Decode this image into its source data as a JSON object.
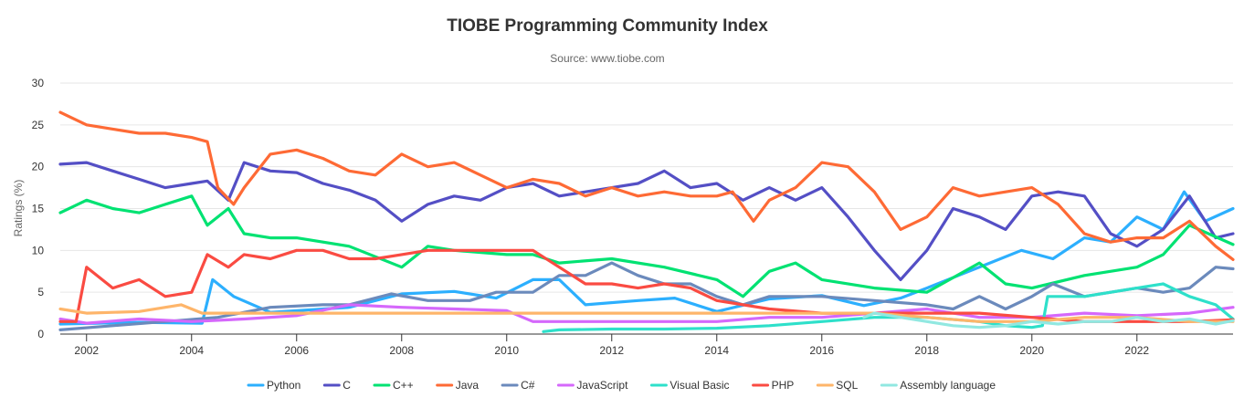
{
  "chart_data": {
    "type": "line",
    "title": "TIOBE Programming Community Index",
    "subtitle": "Source: www.tiobe.com",
    "ylabel": "Ratings (%)",
    "xlabel": "",
    "xlim": [
      2001.5,
      2023.83
    ],
    "ylim": [
      0,
      30
    ],
    "yticks": [
      0,
      5,
      10,
      15,
      20,
      25,
      30
    ],
    "xticks": [
      2002,
      2004,
      2006,
      2008,
      2010,
      2012,
      2014,
      2016,
      2018,
      2020,
      2022
    ],
    "grid": "horizontal",
    "legend": "bottom",
    "series": [
      {
        "name": "Python",
        "color": "#2caffe",
        "x": [
          2001.5,
          2003,
          2004.2,
          2004.4,
          2004.8,
          2005.5,
          2007,
          2008,
          2009,
          2009.8,
          2010.5,
          2011,
          2011.5,
          2012.5,
          2013.2,
          2014,
          2015,
          2016,
          2016.8,
          2017.5,
          2018,
          2018.6,
          2019.2,
          2019.8,
          2020.4,
          2021,
          2021.5,
          2022,
          2022.5,
          2022.9,
          2023.3,
          2023.83
        ],
        "values": [
          1.2,
          1.4,
          1.3,
          6.5,
          4.5,
          2.6,
          3.2,
          4.8,
          5.1,
          4.3,
          6.5,
          6.5,
          3.5,
          4.0,
          4.3,
          2.7,
          4.2,
          4.6,
          3.4,
          4.3,
          5.5,
          7.0,
          8.5,
          10.0,
          9.0,
          11.5,
          11.0,
          14.0,
          12.5,
          17.0,
          13.5,
          15.0
        ]
      },
      {
        "name": "C",
        "color": "#544fc5",
        "x": [
          2001.5,
          2002,
          2002.5,
          2003,
          2003.5,
          2004,
          2004.3,
          2004.7,
          2005,
          2005.5,
          2006,
          2006.5,
          2007,
          2007.5,
          2008,
          2008.5,
          2009,
          2009.5,
          2010,
          2010.5,
          2011,
          2011.5,
          2012,
          2012.5,
          2013,
          2013.5,
          2014,
          2014.5,
          2015,
          2015.5,
          2016,
          2016.5,
          2017,
          2017.5,
          2018,
          2018.5,
          2019,
          2019.5,
          2020,
          2020.5,
          2021,
          2021.5,
          2022,
          2022.5,
          2023,
          2023.5,
          2023.83
        ],
        "values": [
          20.3,
          20.5,
          19.5,
          18.5,
          17.5,
          18.0,
          18.3,
          16.0,
          20.5,
          19.5,
          19.3,
          18.0,
          17.2,
          16.0,
          13.5,
          15.5,
          16.5,
          16.0,
          17.5,
          18.0,
          16.5,
          17.0,
          17.5,
          18.0,
          19.5,
          17.5,
          18.0,
          16.0,
          17.5,
          16.0,
          17.5,
          14.0,
          10.0,
          6.5,
          10.0,
          15.0,
          14.0,
          12.5,
          16.5,
          17.0,
          16.5,
          12.0,
          10.5,
          12.5,
          16.5,
          11.5,
          12.0
        ]
      },
      {
        "name": "C++",
        "color": "#00e272",
        "x": [
          2001.5,
          2002,
          2002.5,
          2003,
          2003.5,
          2004,
          2004.3,
          2004.7,
          2005,
          2005.5,
          2006,
          2007,
          2008,
          2008.5,
          2009,
          2010,
          2010.5,
          2011,
          2012,
          2013,
          2014,
          2014.5,
          2015,
          2015.5,
          2016,
          2017,
          2018,
          2019,
          2019.5,
          2020,
          2021,
          2022,
          2022.5,
          2023,
          2023.83
        ],
        "values": [
          14.5,
          16.0,
          15.0,
          14.5,
          15.5,
          16.5,
          13.0,
          15.0,
          12.0,
          11.5,
          11.5,
          10.5,
          8.0,
          10.5,
          10.0,
          9.5,
          9.5,
          8.5,
          9.0,
          8.0,
          6.5,
          4.5,
          7.5,
          8.5,
          6.5,
          5.5,
          5.0,
          8.5,
          6.0,
          5.5,
          7.0,
          8.0,
          9.5,
          13.0,
          10.7
        ]
      },
      {
        "name": "Java",
        "color": "#fe6a35",
        "x": [
          2001.5,
          2002,
          2002.5,
          2003,
          2003.5,
          2004,
          2004.3,
          2004.5,
          2004.8,
          2005,
          2005.5,
          2006,
          2006.5,
          2007,
          2007.5,
          2008,
          2008.5,
          2009,
          2009.5,
          2010,
          2010.5,
          2011,
          2011.5,
          2012,
          2012.5,
          2013,
          2013.5,
          2014,
          2014.3,
          2014.7,
          2015,
          2015.5,
          2016,
          2016.5,
          2017,
          2017.5,
          2018,
          2018.5,
          2019,
          2019.5,
          2020,
          2020.5,
          2021,
          2021.5,
          2022,
          2022.5,
          2023,
          2023.5,
          2023.83
        ],
        "values": [
          26.5,
          25.0,
          24.5,
          24.0,
          24.0,
          23.5,
          23.0,
          17.5,
          15.5,
          17.5,
          21.5,
          22.0,
          21.0,
          19.5,
          19.0,
          21.5,
          20.0,
          20.5,
          19.0,
          17.5,
          18.5,
          18.0,
          16.5,
          17.5,
          16.5,
          17.0,
          16.5,
          16.5,
          17.0,
          13.5,
          16.0,
          17.5,
          20.5,
          20.0,
          17.0,
          12.5,
          14.0,
          17.5,
          16.5,
          17.0,
          17.5,
          15.5,
          12.0,
          11.0,
          11.5,
          11.5,
          13.5,
          10.5,
          8.9
        ]
      },
      {
        "name": "C#",
        "color": "#6b8abc",
        "x": [
          2001.5,
          2002.5,
          2003.5,
          2004.5,
          2005.5,
          2006.5,
          2007,
          2007.8,
          2008.5,
          2009.3,
          2009.8,
          2010.5,
          2011,
          2011.5,
          2012,
          2012.5,
          2013,
          2013.5,
          2014,
          2014.5,
          2015,
          2016,
          2017,
          2018,
          2018.5,
          2019,
          2019.5,
          2020,
          2020.4,
          2021,
          2022,
          2022.5,
          2023,
          2023.5,
          2023.83
        ],
        "values": [
          0.5,
          1.0,
          1.5,
          2.0,
          3.2,
          3.5,
          3.5,
          4.8,
          4.0,
          4.0,
          5.0,
          5.0,
          7.0,
          7.0,
          8.5,
          7.0,
          6.0,
          6.0,
          4.5,
          3.5,
          4.5,
          4.5,
          4.0,
          3.5,
          3.0,
          4.5,
          3.0,
          4.5,
          6.0,
          4.5,
          5.5,
          5.0,
          5.5,
          8.0,
          7.8
        ]
      },
      {
        "name": "JavaScript",
        "color": "#d568fb",
        "x": [
          2001.5,
          2002,
          2003,
          2004,
          2005,
          2006,
          2007,
          2008,
          2009,
          2010,
          2010.5,
          2011,
          2012,
          2013,
          2014,
          2015,
          2016,
          2017,
          2018,
          2019,
          2020,
          2021,
          2022,
          2023,
          2023.83
        ],
        "values": [
          1.8,
          1.3,
          1.8,
          1.5,
          1.8,
          2.2,
          3.5,
          3.2,
          3.0,
          2.8,
          1.5,
          1.5,
          1.5,
          1.5,
          1.5,
          2.0,
          2.0,
          2.5,
          3.0,
          2.0,
          2.0,
          2.5,
          2.2,
          2.5,
          3.2
        ]
      },
      {
        "name": "Visual Basic",
        "color": "#2ee0ca",
        "x": [
          2010.7,
          2011,
          2012,
          2013,
          2014,
          2015,
          2016,
          2017,
          2018,
          2019,
          2019.5,
          2020,
          2020.2,
          2020.3,
          2021,
          2022,
          2022.5,
          2023,
          2023.5,
          2023.83
        ],
        "values": [
          0.3,
          0.5,
          0.6,
          0.6,
          0.7,
          1.0,
          1.5,
          2.0,
          2.0,
          1.5,
          1.0,
          0.8,
          1.0,
          4.5,
          4.5,
          5.5,
          6.0,
          4.5,
          3.5,
          1.8
        ]
      },
      {
        "name": "PHP",
        "color": "#fa4b42",
        "x": [
          2001.5,
          2001.8,
          2002,
          2002.5,
          2003,
          2003.5,
          2004,
          2004.3,
          2004.7,
          2005,
          2005.5,
          2006,
          2006.5,
          2007,
          2007.5,
          2008,
          2008.5,
          2009,
          2009.5,
          2010,
          2010.5,
          2011,
          2011.5,
          2012,
          2012.5,
          2013,
          2013.5,
          2014,
          2015,
          2016,
          2017,
          2018,
          2019,
          2020,
          2021,
          2022,
          2023,
          2023.83
        ],
        "values": [
          1.5,
          1.5,
          8.0,
          5.5,
          6.5,
          4.5,
          5.0,
          9.5,
          8.0,
          9.5,
          9.0,
          10.0,
          10.0,
          9.0,
          9.0,
          9.5,
          10.0,
          10.0,
          10.0,
          10.0,
          10.0,
          8.0,
          6.0,
          6.0,
          5.5,
          6.0,
          5.5,
          4.0,
          3.0,
          2.5,
          2.5,
          2.5,
          2.5,
          2.0,
          1.5,
          1.5,
          1.5,
          1.7
        ]
      },
      {
        "name": "SQL",
        "color": "#feb56a",
        "x": [
          2001.5,
          2002,
          2003,
          2003.8,
          2004.2,
          2005,
          2008,
          2011,
          2014,
          2017,
          2018,
          2019,
          2020,
          2021,
          2022,
          2023,
          2023.83
        ],
        "values": [
          3.0,
          2.5,
          2.7,
          3.5,
          2.5,
          2.5,
          2.5,
          2.5,
          2.5,
          2.5,
          2.0,
          1.5,
          1.5,
          2.0,
          2.0,
          1.5,
          1.5
        ]
      },
      {
        "name": "Assembly language",
        "color": "#91e8e1",
        "x": [
          2016.8,
          2017,
          2017.5,
          2018,
          2018.5,
          2019,
          2019.5,
          2020,
          2020.5,
          2021,
          2021.5,
          2022,
          2022.5,
          2023,
          2023.5,
          2023.83
        ],
        "values": [
          2.0,
          2.5,
          2.0,
          1.5,
          1.0,
          0.8,
          1.0,
          1.5,
          1.2,
          1.5,
          1.5,
          2.0,
          1.5,
          1.8,
          1.2,
          1.6
        ]
      }
    ]
  }
}
